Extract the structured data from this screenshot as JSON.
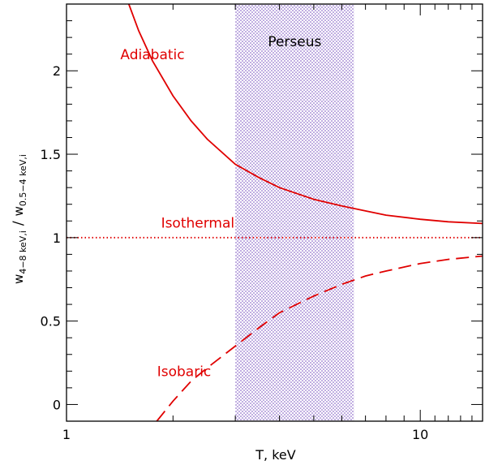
{
  "chart_data": {
    "type": "line",
    "x_scale": "log",
    "xlim": [
      1,
      15
    ],
    "ylim": [
      -0.1,
      2.4
    ],
    "grid": false,
    "xlabel": "T, keV",
    "ylabel": {
      "num_base": "w",
      "num_sub": "4−8 keV,i",
      "slash": "/",
      "den_base": "w",
      "den_sub": "0.5−4 keV,i"
    },
    "x_tick_labels": [
      {
        "value": 1,
        "label": "1"
      },
      {
        "value": 10,
        "label": "10"
      }
    ],
    "y_tick_labels": [
      {
        "value": 0,
        "label": "0"
      },
      {
        "value": 0.5,
        "label": "0.5"
      },
      {
        "value": 1,
        "label": "1"
      },
      {
        "value": 1.5,
        "label": "1.5"
      },
      {
        "value": 2,
        "label": "2"
      }
    ],
    "shaded_region": {
      "label": "Perseus",
      "x_range": [
        3.0,
        6.5
      ],
      "color": "#6a3fb8"
    },
    "series": [
      {
        "name": "Adiabatic",
        "style": "solid",
        "color": "#e00000",
        "x": [
          1.5,
          1.6,
          1.75,
          2.0,
          2.25,
          2.5,
          3.0,
          3.5,
          4.0,
          5.0,
          6.0,
          7.0,
          8.0,
          10.0,
          12.0,
          15.0
        ],
        "y": [
          2.4,
          2.24,
          2.06,
          1.85,
          1.7,
          1.59,
          1.44,
          1.36,
          1.3,
          1.23,
          1.19,
          1.16,
          1.135,
          1.11,
          1.095,
          1.085
        ]
      },
      {
        "name": "Isothermal",
        "style": "dotted",
        "color": "#e00000",
        "x": [
          1,
          15
        ],
        "y": [
          1,
          1
        ]
      },
      {
        "name": "Isobaric",
        "style": "dashed",
        "color": "#e00000",
        "x": [
          1.8,
          2.0,
          2.25,
          2.5,
          3.0,
          3.5,
          4.0,
          5.0,
          6.0,
          7.0,
          8.0,
          10.0,
          12.0,
          15.0
        ],
        "y": [
          -0.1,
          0.02,
          0.14,
          0.22,
          0.35,
          0.46,
          0.55,
          0.65,
          0.72,
          0.77,
          0.8,
          0.845,
          0.87,
          0.89
        ]
      }
    ]
  }
}
